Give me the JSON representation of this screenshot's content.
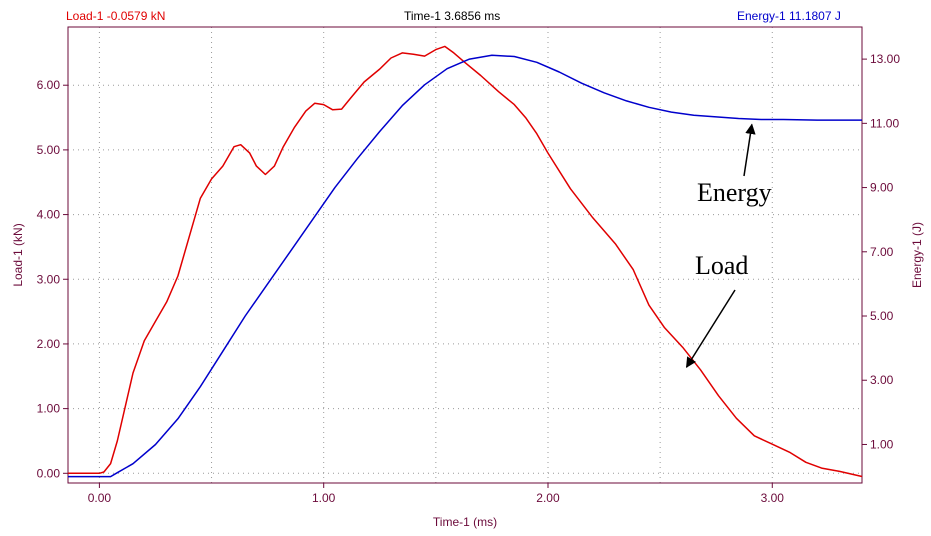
{
  "header": {
    "load_readout": "Load-1  -0.0579 kN",
    "time_readout": "Time-1  3.6856 ms",
    "energy_readout": "Energy-1  11.1807 J"
  },
  "colors": {
    "load": "#e00000",
    "energy": "#0000cc",
    "axis": "#6b0a3a",
    "grid": "#9a9a9a",
    "annotation": "#000000"
  },
  "chart_data": {
    "type": "line",
    "title": "",
    "xlabel": "Time-1 (ms)",
    "ylabel_left": "Load-1 (kN)",
    "ylabel_right": "Energy-1 (J)",
    "xlim": [
      -0.14,
      3.4
    ],
    "ylim_left": [
      -0.15,
      6.9
    ],
    "ylim_right": [
      -0.2,
      14.0
    ],
    "x_ticks": [
      "0.00",
      "1.00",
      "2.00",
      "3.00"
    ],
    "y_left_ticks": [
      "0.00",
      "1.00",
      "2.00",
      "3.00",
      "4.00",
      "5.00",
      "6.00"
    ],
    "y_right_ticks": [
      "1.00",
      "3.00",
      "5.00",
      "7.00",
      "9.00",
      "11.00",
      "13.00"
    ],
    "grid": true,
    "series": [
      {
        "name": "Load",
        "axis": "left",
        "points": [
          [
            -0.14,
            0.0
          ],
          [
            0.0,
            0.0
          ],
          [
            0.02,
            0.02
          ],
          [
            0.05,
            0.15
          ],
          [
            0.08,
            0.5
          ],
          [
            0.12,
            1.1
          ],
          [
            0.15,
            1.55
          ],
          [
            0.2,
            2.05
          ],
          [
            0.25,
            2.35
          ],
          [
            0.3,
            2.65
          ],
          [
            0.35,
            3.05
          ],
          [
            0.4,
            3.65
          ],
          [
            0.45,
            4.25
          ],
          [
            0.5,
            4.55
          ],
          [
            0.55,
            4.75
          ],
          [
            0.6,
            5.05
          ],
          [
            0.63,
            5.08
          ],
          [
            0.67,
            4.95
          ],
          [
            0.7,
            4.75
          ],
          [
            0.74,
            4.62
          ],
          [
            0.78,
            4.75
          ],
          [
            0.82,
            5.05
          ],
          [
            0.87,
            5.35
          ],
          [
            0.92,
            5.6
          ],
          [
            0.96,
            5.72
          ],
          [
            1.0,
            5.7
          ],
          [
            1.04,
            5.62
          ],
          [
            1.08,
            5.63
          ],
          [
            1.12,
            5.8
          ],
          [
            1.18,
            6.05
          ],
          [
            1.25,
            6.25
          ],
          [
            1.3,
            6.42
          ],
          [
            1.35,
            6.5
          ],
          [
            1.4,
            6.48
          ],
          [
            1.45,
            6.45
          ],
          [
            1.5,
            6.55
          ],
          [
            1.54,
            6.6
          ],
          [
            1.58,
            6.5
          ],
          [
            1.63,
            6.35
          ],
          [
            1.7,
            6.15
          ],
          [
            1.78,
            5.9
          ],
          [
            1.85,
            5.7
          ],
          [
            1.9,
            5.5
          ],
          [
            1.95,
            5.25
          ],
          [
            2.0,
            4.95
          ],
          [
            2.1,
            4.4
          ],
          [
            2.2,
            3.95
          ],
          [
            2.3,
            3.55
          ],
          [
            2.38,
            3.15
          ],
          [
            2.45,
            2.6
          ],
          [
            2.52,
            2.25
          ],
          [
            2.6,
            1.95
          ],
          [
            2.68,
            1.6
          ],
          [
            2.76,
            1.2
          ],
          [
            2.84,
            0.85
          ],
          [
            2.92,
            0.58
          ],
          [
            3.0,
            0.45
          ],
          [
            3.08,
            0.32
          ],
          [
            3.15,
            0.17
          ],
          [
            3.22,
            0.08
          ],
          [
            3.3,
            0.03
          ],
          [
            3.4,
            -0.05
          ]
        ]
      },
      {
        "name": "Energy",
        "axis": "right",
        "points": [
          [
            -0.14,
            0.0
          ],
          [
            0.05,
            0.0
          ],
          [
            0.08,
            0.12
          ],
          [
            0.15,
            0.4
          ],
          [
            0.25,
            1.0
          ],
          [
            0.35,
            1.8
          ],
          [
            0.45,
            2.8
          ],
          [
            0.55,
            3.9
          ],
          [
            0.65,
            5.0
          ],
          [
            0.75,
            6.0
          ],
          [
            0.85,
            7.0
          ],
          [
            0.95,
            8.0
          ],
          [
            1.05,
            9.0
          ],
          [
            1.15,
            9.9
          ],
          [
            1.25,
            10.75
          ],
          [
            1.35,
            11.55
          ],
          [
            1.45,
            12.2
          ],
          [
            1.55,
            12.7
          ],
          [
            1.65,
            13.0
          ],
          [
            1.75,
            13.12
          ],
          [
            1.85,
            13.08
          ],
          [
            1.95,
            12.9
          ],
          [
            2.05,
            12.6
          ],
          [
            2.15,
            12.25
          ],
          [
            2.25,
            11.95
          ],
          [
            2.35,
            11.7
          ],
          [
            2.45,
            11.5
          ],
          [
            2.55,
            11.35
          ],
          [
            2.65,
            11.25
          ],
          [
            2.75,
            11.2
          ],
          [
            2.85,
            11.15
          ],
          [
            2.95,
            11.12
          ],
          [
            3.05,
            11.12
          ],
          [
            3.2,
            11.1
          ],
          [
            3.4,
            11.1
          ]
        ]
      }
    ],
    "annotations": [
      {
        "text": "Energy",
        "arrow_to": [
          2.9,
          11.15
        ],
        "axis": "right"
      },
      {
        "text": "Load",
        "arrow_to": [
          2.6,
          1.58
        ],
        "axis": "left"
      }
    ]
  }
}
